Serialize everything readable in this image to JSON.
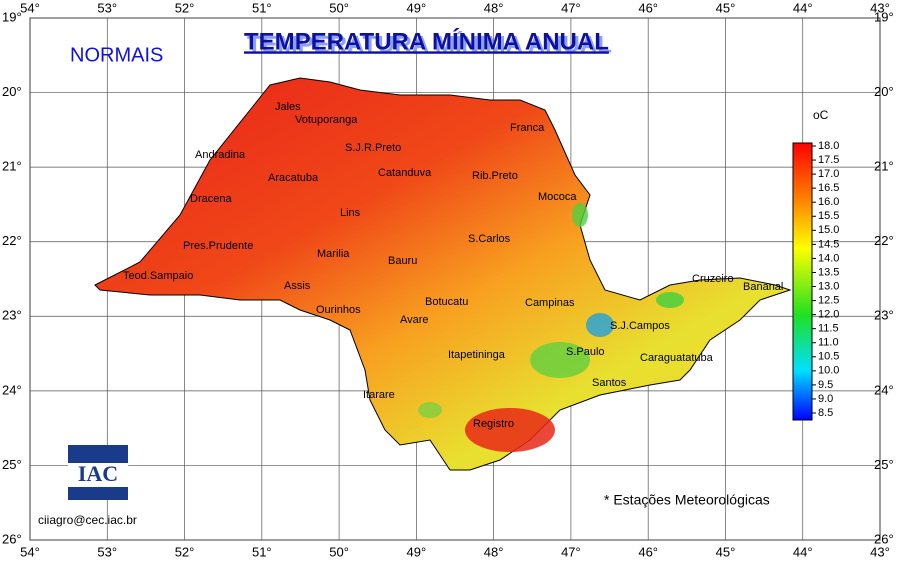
{
  "header": {
    "title": "TEMPERATURA MÍNIMA ANUAL",
    "subtitle": "NORMAIS"
  },
  "map": {
    "longitudes": [
      {
        "value": 54,
        "label": "54°"
      },
      {
        "value": 53,
        "label": "53°"
      },
      {
        "value": 52,
        "label": "52°"
      },
      {
        "value": 51,
        "label": "51°"
      },
      {
        "value": 50,
        "label": "50°"
      },
      {
        "value": 49,
        "label": "49°"
      },
      {
        "value": 48,
        "label": "48°"
      },
      {
        "value": 47,
        "label": "47°"
      },
      {
        "value": 46,
        "label": "46°"
      },
      {
        "value": 45,
        "label": "45°"
      },
      {
        "value": 44,
        "label": "44°"
      },
      {
        "value": 43,
        "label": "43°"
      }
    ],
    "latitudes": [
      {
        "value": 19,
        "label": "19°"
      },
      {
        "value": 20,
        "label": "20°"
      },
      {
        "value": 21,
        "label": "21°"
      },
      {
        "value": 22,
        "label": "22°"
      },
      {
        "value": 23,
        "label": "23°"
      },
      {
        "value": 24,
        "label": "24°"
      },
      {
        "value": 25,
        "label": "25°"
      },
      {
        "value": 26,
        "label": "26°"
      }
    ],
    "cities": [
      "Jales",
      "Votuporanga",
      "Franca",
      "S.J.R.Preto",
      "Andradina",
      "Aracatuba",
      "Catanduva",
      "Rib.Preto",
      "Mococa",
      "Dracena",
      "Lins",
      "S.Carlos",
      "Pres.Prudente",
      "Marilia",
      "Bauru",
      "Teod.Sampaio",
      "Assis",
      "Ourinhos",
      "Botucatu",
      "Campinas",
      "Avare",
      "Cruzeiro",
      "Bananal",
      "S.J.Campos",
      "Itapetininga",
      "S.Paulo",
      "Caraguatatuba",
      "Santos",
      "Itarare",
      "Registro"
    ]
  },
  "legend": {
    "unit": "oC",
    "ticks": [
      {
        "value": 18,
        "label": "18.0"
      },
      17.5,
      {
        "value": 17,
        "label": "17.0"
      },
      16.5,
      {
        "value": 16,
        "label": "16.0"
      },
      15.5,
      {
        "value": 15,
        "label": "15.0"
      },
      14.5,
      {
        "value": 14,
        "label": "14.0"
      },
      13.5,
      {
        "value": 13,
        "label": "13.0"
      },
      12.5,
      {
        "value": 12,
        "label": "12.0"
      },
      11.5,
      {
        "value": 11,
        "label": "11.0"
      },
      10.5,
      {
        "value": 10,
        "label": "10.0"
      },
      9.5,
      {
        "value": 9,
        "label": "9.0"
      },
      8.5
    ]
  },
  "footer": {
    "logo": "IAC",
    "email": "ciiagro@cec.iac.br",
    "note": "* Estações Meteorológicas"
  }
}
